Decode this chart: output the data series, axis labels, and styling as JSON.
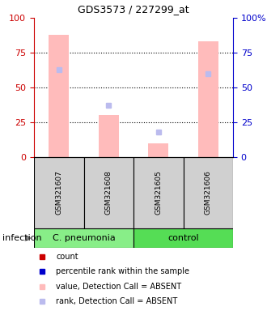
{
  "title": "GDS3573 / 227299_at",
  "samples": [
    "GSM321607",
    "GSM321608",
    "GSM321605",
    "GSM321606"
  ],
  "bar_colors_absent": [
    "#ffbbbb",
    "#ffbbbb",
    "#ffbbbb",
    "#ffbbbb"
  ],
  "rank_colors_absent": [
    "#bbbbee",
    "#bbbbee",
    "#bbbbee",
    "#bbbbee"
  ],
  "values_absent": [
    88,
    30,
    10,
    83
  ],
  "ranks_absent": [
    63,
    37,
    18,
    60
  ],
  "left_ticks": [
    0,
    25,
    50,
    75,
    100
  ],
  "right_ticks": [
    0,
    25,
    50,
    75,
    100
  ],
  "left_color": "#cc0000",
  "right_color": "#0000cc",
  "group_label": "infection",
  "group_defs": [
    {
      "label": "C. pneumonia",
      "start": 0,
      "end": 2,
      "color": "#88ee88"
    },
    {
      "label": "control",
      "start": 2,
      "end": 4,
      "color": "#55dd55"
    }
  ],
  "legend_items": [
    {
      "color": "#cc0000",
      "label": "count"
    },
    {
      "color": "#0000cc",
      "label": "percentile rank within the sample"
    },
    {
      "color": "#ffbbbb",
      "label": "value, Detection Call = ABSENT"
    },
    {
      "color": "#bbbbee",
      "label": "rank, Detection Call = ABSENT"
    }
  ],
  "fig_width": 3.3,
  "fig_height": 3.84,
  "dpi": 100
}
